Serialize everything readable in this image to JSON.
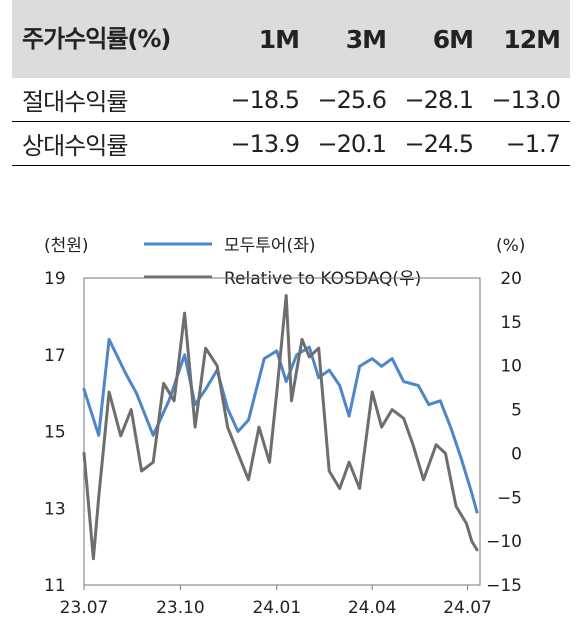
{
  "table": {
    "header_label": "주가수익률(%)",
    "columns": [
      "1M",
      "3M",
      "6M",
      "12M"
    ],
    "rows": [
      {
        "label": "절대수익률",
        "values": [
          "−18.5",
          "−25.6",
          "−28.1",
          "−13.0"
        ]
      },
      {
        "label": "상대수익률",
        "values": [
          "−13.9",
          "−20.1",
          "−24.5",
          "−1.7"
        ]
      }
    ]
  },
  "chart_data": {
    "type": "line",
    "left_unit": "(천원)",
    "right_unit": "(%)",
    "x_ticks": [
      "23.07",
      "23.10",
      "24.01",
      "24.04",
      "24.07"
    ],
    "left_axis": {
      "ticks": [
        19,
        17,
        15,
        13,
        11
      ],
      "ylim": [
        11,
        19
      ]
    },
    "right_axis": {
      "ticks": [
        20,
        15,
        10,
        5,
        0,
        -5,
        -10,
        -15
      ],
      "ylim": [
        -15,
        20
      ]
    },
    "series": [
      {
        "name": "모두투어(좌)",
        "axis": "left",
        "color": "#4f86c9",
        "x": [
          "23.07.01",
          "23.07.15",
          "23.07.25",
          "23.08.10",
          "23.08.20",
          "23.09.05",
          "23.09.20",
          "23.10.05",
          "23.10.15",
          "23.10.25",
          "23.11.05",
          "23.11.15",
          "23.11.25",
          "23.12.05",
          "23.12.20",
          "24.01.01",
          "24.01.10",
          "24.01.20",
          "24.02.01",
          "24.02.10",
          "24.02.20",
          "24.03.01",
          "24.03.10",
          "24.03.20",
          "24.04.01",
          "24.04.10",
          "24.04.20",
          "24.05.01",
          "24.05.15",
          "24.05.25",
          "24.06.05",
          "24.06.15",
          "24.06.25",
          "24.07.05",
          "24.07.10"
        ],
        "y": [
          16.1,
          14.9,
          17.4,
          16.5,
          16.0,
          14.9,
          15.8,
          17.0,
          15.7,
          16.1,
          16.6,
          15.6,
          15.0,
          15.3,
          16.9,
          17.1,
          16.3,
          17.0,
          17.2,
          16.4,
          16.6,
          16.2,
          15.4,
          16.7,
          16.9,
          16.7,
          16.9,
          16.3,
          16.2,
          15.7,
          15.8,
          15.1,
          14.3,
          13.4,
          12.9
        ]
      },
      {
        "name": "Relative to KOSDAQ(우)",
        "axis": "right",
        "color": "#6e6e6e",
        "x": [
          "23.07.01",
          "23.07.10",
          "23.07.15",
          "23.07.25",
          "23.08.05",
          "23.08.15",
          "23.08.25",
          "23.09.05",
          "23.09.15",
          "23.09.25",
          "23.10.05",
          "23.10.15",
          "23.10.25",
          "23.11.05",
          "23.11.15",
          "23.11.25",
          "23.12.05",
          "23.12.15",
          "23.12.25",
          "24.01.01",
          "24.01.10",
          "24.01.15",
          "24.01.25",
          "24.02.01",
          "24.02.10",
          "24.02.20",
          "24.03.01",
          "24.03.10",
          "24.03.20",
          "24.04.01",
          "24.04.10",
          "24.04.20",
          "24.05.01",
          "24.05.10",
          "24.05.20",
          "24.06.01",
          "24.06.10",
          "24.06.20",
          "24.06.30",
          "24.07.05",
          "24.07.10"
        ],
        "y": [
          0,
          -12,
          -5,
          7,
          2,
          5,
          -2,
          -1,
          8,
          6,
          16,
          3,
          12,
          10,
          3,
          0,
          -3,
          3,
          -1,
          7,
          18,
          6,
          13,
          11,
          12,
          -2,
          -4,
          -1,
          -4,
          7,
          3,
          5,
          4,
          1,
          -3,
          1,
          0,
          -6,
          -8,
          -10,
          -11
        ]
      }
    ]
  }
}
